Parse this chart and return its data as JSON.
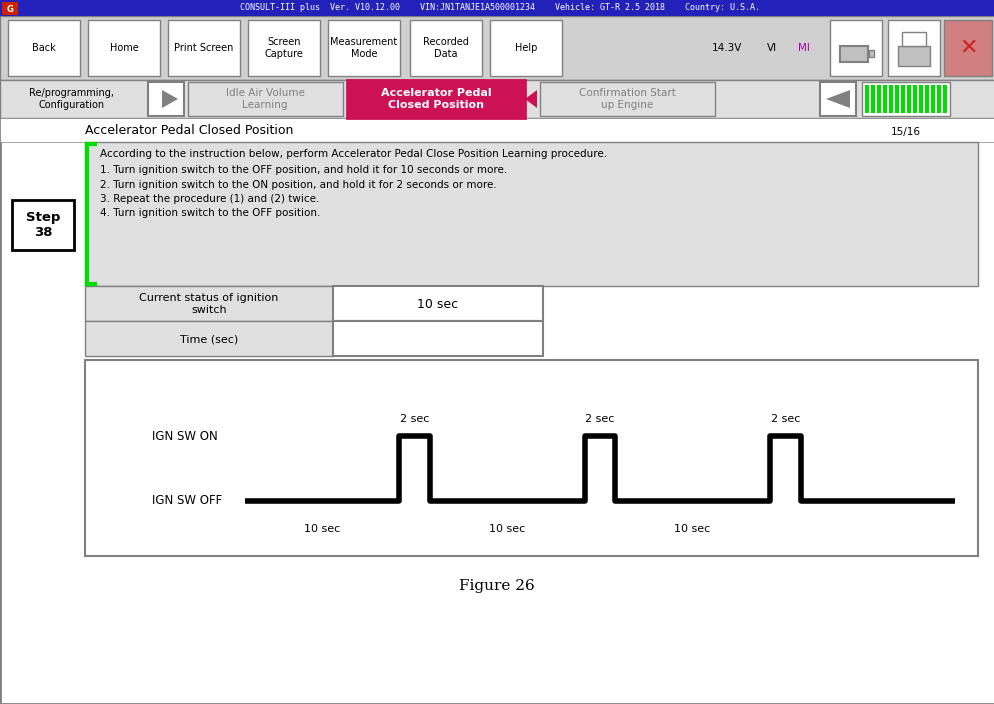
{
  "title": "Figure 26",
  "topbar_text": "CONSULT-III plus  Ver. V10.12.00    VIN:JN1TANJE1A500001234    Vehicle: GT-R 2.5 2018    Country: U.S.A.",
  "section_title": "Accelerator Pedal Closed Position",
  "instructions": [
    "According to the instruction below, perform Accelerator Pedal Close Position Learning procedure.",
    "1. Turn ignition switch to the OFF position, and hold it for 10 seconds or more.",
    "2. Turn ignition switch to the ON position, and hold it for 2 seconds or more.",
    "3. Repeat the procedure (1) and (2) twice.",
    "4. Turn ignition switch to the OFF position."
  ],
  "step_label": "Step\n38",
  "status_label": "Current status of ignition\nswitch",
  "status_value": "10 sec",
  "time_label": "Time (sec)",
  "ign_on_label": "IGN SW ON",
  "ign_off_label": "IGN SW OFF",
  "sec2_labels": [
    "2 sec",
    "2 sec",
    "2 sec"
  ],
  "sec10_labels": [
    "10 sec",
    "10 sec",
    "10 sec"
  ],
  "toolbar_buttons": [
    "Back",
    "Home",
    "Print Screen",
    "Screen\nCapture",
    "Measurement\nMode",
    "Recorded\nData",
    "Help"
  ],
  "page_indicator": "15/16",
  "nav_reprog": "Re/programming,\nConfiguration",
  "nav_idle": "Idle Air Volume\nLearning",
  "nav_accel": "Accelerator Pedal\nClosed Position",
  "nav_confirm": "Confirmation Start\nup Engine",
  "white": "#ffffff",
  "black": "#000000",
  "red_active": "#cc1155",
  "green": "#00dd00",
  "light_gray": "#e0e0e0",
  "mid_gray": "#c0c0c0",
  "dark_gray": "#808080",
  "toolbar_bg": "#d0d0d0",
  "blue_bar": "#2222bb",
  "purple_mi": "#aa00aa",
  "red_x_bg": "#d08080",
  "red_x_color": "#cc2222"
}
